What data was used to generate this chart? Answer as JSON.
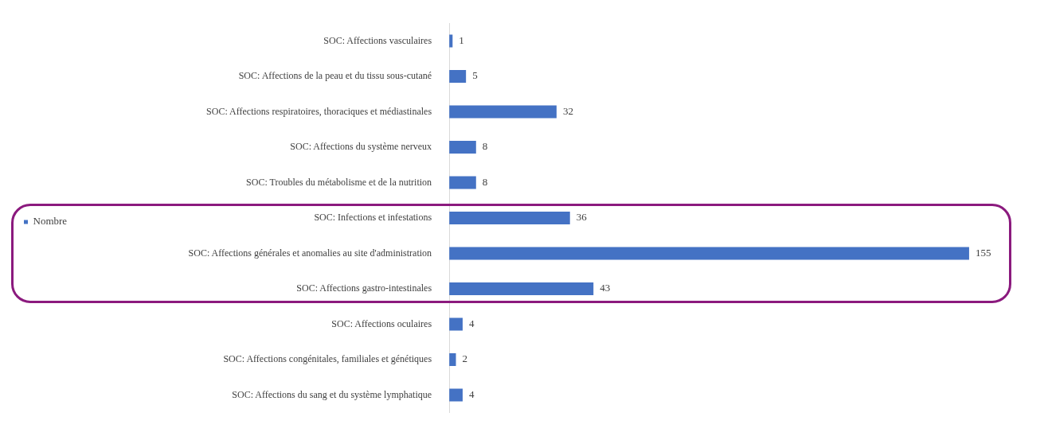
{
  "chart_data": {
    "type": "bar",
    "orientation": "horizontal",
    "categories": [
      "SOC: Affections vasculaires",
      "SOC: Affections de la peau et du tissu sous-cutané",
      "SOC: Affections respiratoires, thoraciques et médiastinales",
      "SOC: Affections du système nerveux",
      "SOC: Troubles du métabolisme et de la nutrition",
      "SOC: Infections et infestations",
      "SOC: Affections générales et anomalies au site d'administration",
      "SOC: Affections gastro-intestinales",
      "SOC: Affections oculaires",
      "SOC: Affections congénitales, familiales et génétiques",
      "SOC: Affections du sang et du système lymphatique"
    ],
    "series": [
      {
        "name": "Nombre",
        "color": "#4472c4",
        "values": [
          1,
          5,
          32,
          8,
          8,
          36,
          155,
          43,
          4,
          2,
          4
        ]
      }
    ],
    "data_labels": true,
    "legend": "left"
  }
}
